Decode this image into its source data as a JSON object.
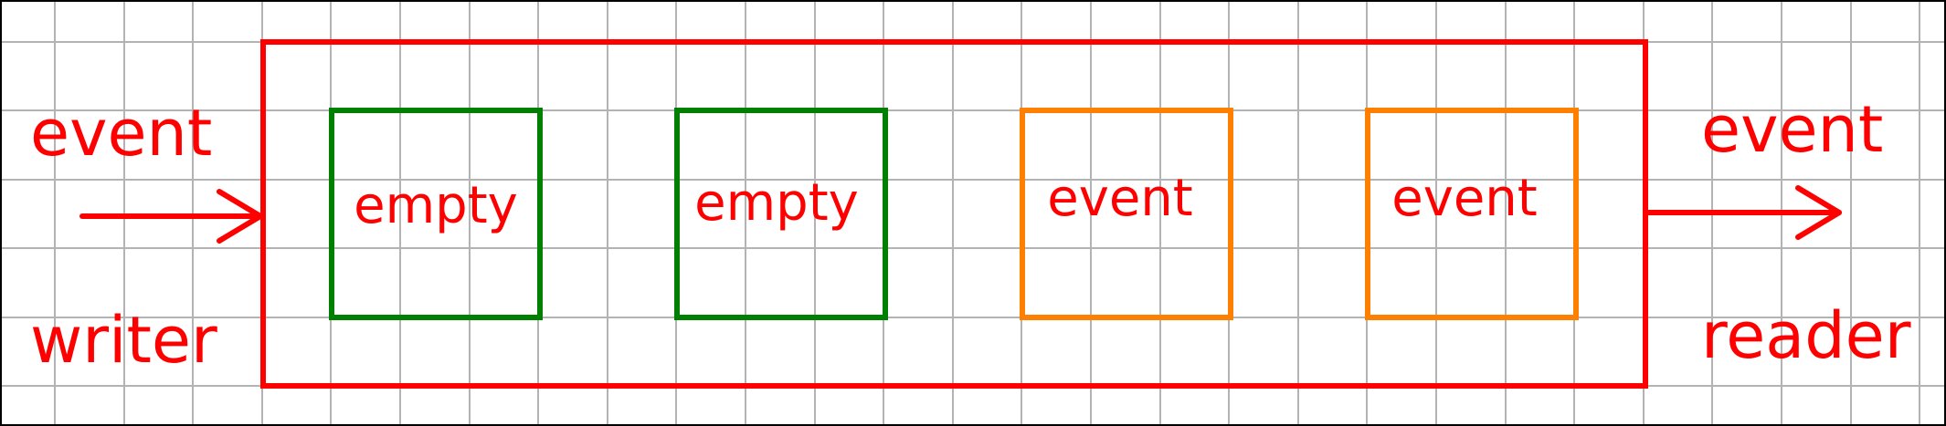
{
  "colors": {
    "background": "#ffffff",
    "grid": "#b3b3b3",
    "frame": "#000000",
    "buffer_outline": "#ff0000",
    "empty_slot": "#008000",
    "event_slot": "#ff8000",
    "text": "#ff0000"
  },
  "left": {
    "event_label": "event",
    "writer_label": "writer"
  },
  "right": {
    "event_label": "event",
    "reader_label": "reader"
  },
  "slots": [
    {
      "label": "empty",
      "state": "empty"
    },
    {
      "label": "empty",
      "state": "empty"
    },
    {
      "label": "event",
      "state": "event"
    },
    {
      "label": "event",
      "state": "event"
    }
  ]
}
